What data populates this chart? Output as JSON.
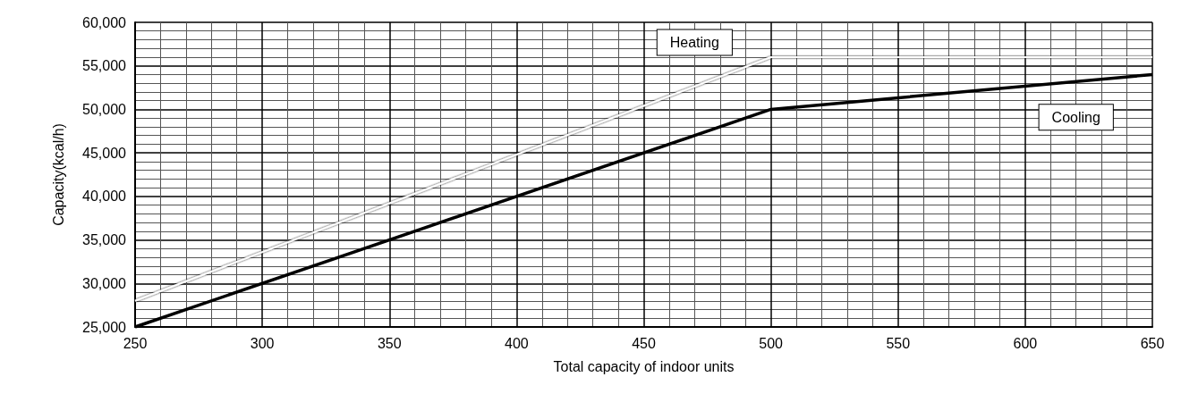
{
  "chart_data": {
    "type": "line",
    "xlabel": "Total capacity of indoor units",
    "ylabel": "Capacity(kcal/h)",
    "x": [
      250,
      500,
      650
    ],
    "series": [
      {
        "name": "Heating",
        "color": "#ffffff",
        "values": [
          28000,
          56000,
          56000
        ]
      },
      {
        "name": "Cooling",
        "color": "#000000",
        "values": [
          25000,
          50000,
          54000
        ]
      }
    ],
    "xlim": [
      250,
      650
    ],
    "xticks": [
      250,
      300,
      350,
      400,
      450,
      500,
      550,
      600,
      650
    ],
    "ylim": [
      25000,
      60000
    ],
    "yticks": [
      {
        "value": 25000,
        "label": "25,000"
      },
      {
        "value": 30000,
        "label": "30,000"
      },
      {
        "value": 35000,
        "label": "35,000"
      },
      {
        "value": 40000,
        "label": "40,000"
      },
      {
        "value": 45000,
        "label": "45,000"
      },
      {
        "value": 50000,
        "label": "50,000"
      },
      {
        "value": 55000,
        "label": "55,000"
      },
      {
        "value": 60000,
        "label": "60,000"
      }
    ],
    "grid": true,
    "legend": false,
    "marker": "none",
    "line_style": "solid"
  }
}
